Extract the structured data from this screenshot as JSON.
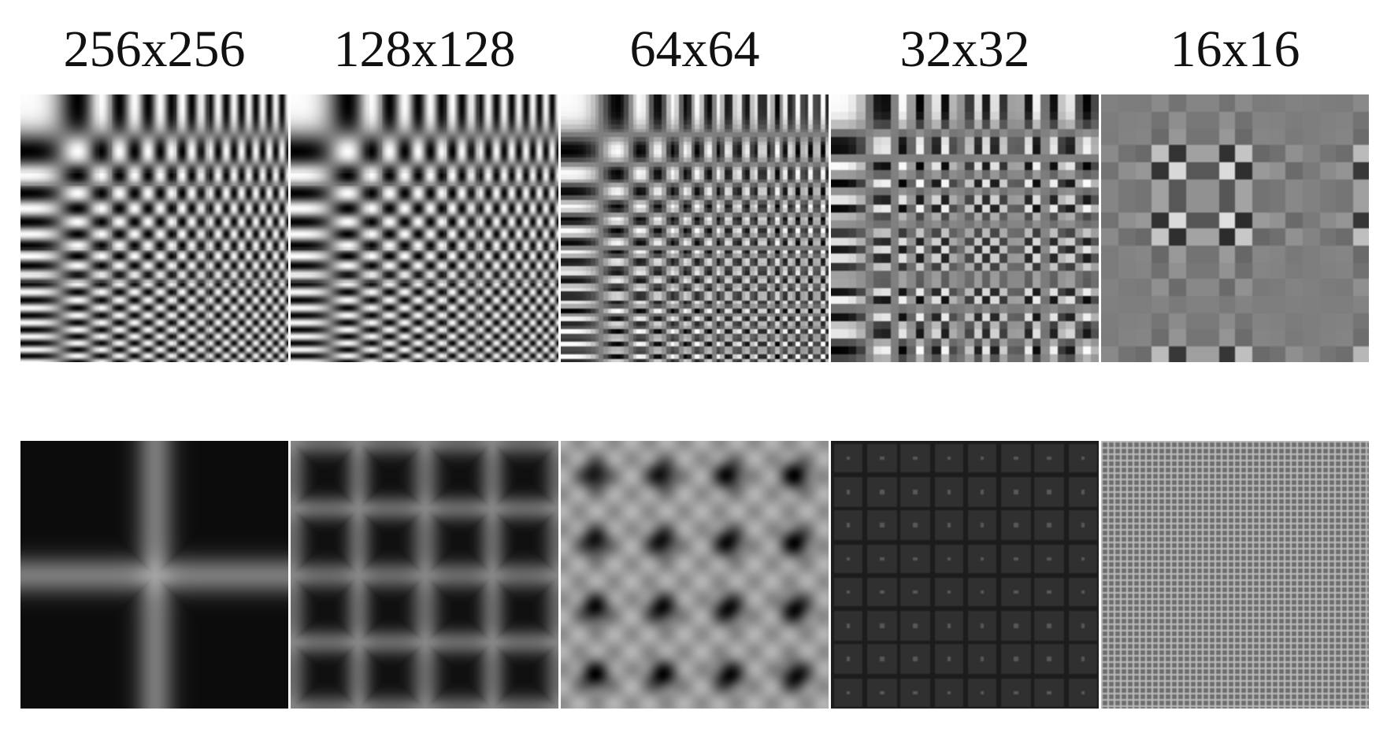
{
  "panels": [
    {
      "label": "256x256",
      "size": 256
    },
    {
      "label": "128x128",
      "size": 128
    },
    {
      "label": "64x64",
      "size": 64
    },
    {
      "label": "32x32",
      "size": 32
    },
    {
      "label": "16x16",
      "size": 16
    }
  ],
  "rows": {
    "top": {
      "kind": "basis-images"
    },
    "bottom": {
      "kind": "spectrum"
    }
  },
  "colors": {
    "background": "#ffffff",
    "neutral_gray": "#7f7f7f",
    "text": "#111111"
  }
}
